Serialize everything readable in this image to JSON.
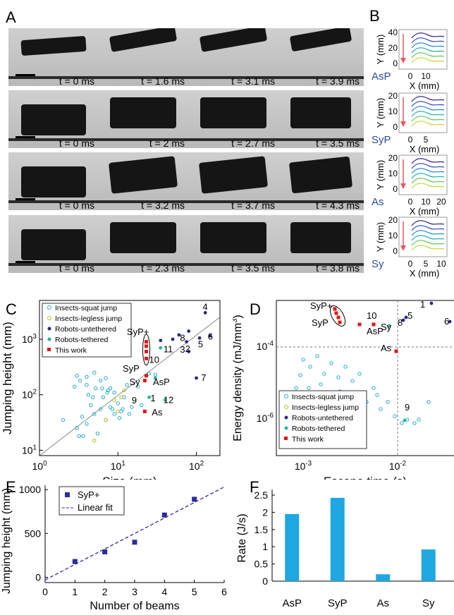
{
  "panels": {
    "A": "A",
    "B": "B",
    "C": "C",
    "D": "D",
    "E": "E",
    "F": "F"
  },
  "panel_a": {
    "rows": [
      {
        "times": [
          "t = 0 ms",
          "t = 1.6 ms",
          "t = 3.1 ms",
          "t = 3.9 ms"
        ]
      },
      {
        "times": [
          "t = 0 ms",
          "t = 2 ms",
          "t = 2.7 ms",
          "t = 3.5 ms"
        ]
      },
      {
        "times": [
          "t = 0 ms",
          "t = 3.2 ms",
          "t = 3.7 ms",
          "t = 4.3 ms"
        ]
      },
      {
        "times": [
          "t = 0 ms",
          "t = 2.3 ms",
          "t = 3.5 ms",
          "t = 3.8 ms"
        ]
      }
    ]
  },
  "panel_b": {
    "subplots": [
      {
        "name": "AsP",
        "ylabel": "Y (mm)",
        "xlabel": "X (mm)",
        "yticks": [
          "40",
          "20",
          "0"
        ],
        "xticks": [
          "0",
          "10"
        ]
      },
      {
        "name": "SyP",
        "ylabel": "Y (mm)",
        "xlabel": "X (mm)",
        "yticks": [
          "20",
          "10",
          "0"
        ],
        "xticks": [
          "0",
          "5"
        ]
      },
      {
        "name": "As",
        "ylabel": "Y (mm)",
        "xlabel": "X (mm)",
        "yticks": [
          "20",
          "10",
          "0"
        ],
        "xticks": [
          "0",
          "10",
          "20"
        ]
      },
      {
        "name": "Sy",
        "ylabel": "Y (mm)",
        "xlabel": "X (mm)",
        "yticks": [
          "20",
          "10",
          "0"
        ],
        "xticks": [
          "0",
          "5",
          "10"
        ]
      }
    ],
    "curve_colors": [
      "#3b2f8f",
      "#3f56c8",
      "#2f8fd6",
      "#25b6b0",
      "#6acb5c",
      "#c9d93d"
    ],
    "arrow_color": "#e8585e"
  },
  "chart_data": [
    {
      "id": "C",
      "type": "scatter",
      "xlabel": "Size (mm)",
      "ylabel": "Jumping height (mm)",
      "xscale": "log",
      "yscale": "log",
      "xlim": [
        1,
        200
      ],
      "ylim": [
        8,
        5000
      ],
      "xticks": [
        "10^0",
        "10^1",
        "10^2"
      ],
      "yticks": [
        "10^1",
        "10^2",
        "10^3"
      ],
      "legend": [
        "Insects-squat jump",
        "Insects-legless jump",
        "Robots-untethered",
        "Robots-tethered",
        "This work"
      ],
      "legend_position": "top-left",
      "colors": {
        "squat": "#22aacc",
        "legless": "#b5c21a",
        "untethered": "#2a2a8a",
        "tethered": "#1fb894",
        "work": "#e01818"
      },
      "series": [
        {
          "name": "Insects-squat jump",
          "points": [
            [
              3,
              25
            ],
            [
              3.5,
              40
            ],
            [
              4,
              30
            ],
            [
              4.5,
              65
            ],
            [
              5,
              45
            ],
            [
              5.5,
              20
            ],
            [
              6,
              55
            ],
            [
              6.5,
              90
            ],
            [
              7,
              35
            ],
            [
              7.5,
              120
            ],
            [
              8,
              60
            ],
            [
              9,
              45
            ],
            [
              10,
              70
            ],
            [
              11,
              50
            ],
            [
              12,
              90
            ],
            [
              13,
              150
            ],
            [
              14,
              45
            ],
            [
              15,
              60
            ],
            [
              4,
              150
            ],
            [
              5,
              250
            ],
            [
              6,
              180
            ],
            [
              7,
              200
            ],
            [
              8,
              130
            ],
            [
              3.2,
              18
            ],
            [
              3.6,
              18
            ],
            [
              4.8,
              90
            ],
            [
              9,
              110
            ],
            [
              10.5,
              38
            ],
            [
              2,
              35
            ],
            [
              2.8,
              140
            ],
            [
              3.3,
              180
            ],
            [
              4.2,
              100
            ],
            [
              5.2,
              130
            ],
            [
              6.3,
              130
            ],
            [
              7.3,
              110
            ],
            [
              8.5,
              55
            ],
            [
              11.5,
              55
            ],
            [
              20,
              65
            ],
            [
              18,
              140
            ],
            [
              25,
              240
            ],
            [
              30,
              230
            ],
            [
              3,
              220
            ],
            [
              4,
              210
            ]
          ]
        },
        {
          "name": "Insects-legless jump",
          "points": [
            [
              5,
              15
            ],
            [
              7,
              35
            ],
            [
              9,
              80
            ],
            [
              10,
              50
            ],
            [
              11,
              90
            ],
            [
              12,
              120
            ]
          ]
        },
        {
          "name": "Robots-untethered",
          "points": [
            [
              130,
              3000
            ],
            [
              80,
              1400
            ],
            [
              75,
              900
            ],
            [
              110,
              1050
            ],
            [
              150,
              1150
            ],
            [
              80,
              600
            ],
            [
              100,
              200
            ],
            [
              35,
              950
            ],
            [
              50,
              1000
            ],
            [
              60,
              1200
            ]
          ]
        },
        {
          "name": "Robots-tethered",
          "points": [
            [
              35,
              700
            ],
            [
              30,
              200
            ],
            [
              25,
              90
            ],
            [
              40,
              80
            ]
          ]
        },
        {
          "name": "This work",
          "points": [
            [
              23,
              900
            ],
            [
              23,
              750
            ],
            [
              23,
              600
            ],
            [
              23,
              450
            ],
            [
              22,
              180
            ],
            [
              23,
              220
            ],
            [
              22,
              50
            ]
          ]
        }
      ],
      "annotations": [
        "4",
        "8",
        "3",
        "5",
        "6",
        "2",
        "7",
        "11",
        "SyP+",
        "10",
        "SyP",
        "Sy",
        "AsP",
        "12",
        "9",
        "1",
        "As"
      ]
    },
    {
      "id": "D",
      "type": "scatter",
      "xlabel": "Escape time (s)",
      "ylabel": "Energy density (mJ/mm^3)",
      "xscale": "log",
      "yscale": "log",
      "xticks": [
        "10^-3",
        "10^-2"
      ],
      "yticks": [
        "10^-4",
        "10^-6"
      ],
      "legend": [
        "Insects-squat jump",
        "Insects-legless jump",
        "Robots-untethered",
        "Robots-tethered",
        "This work"
      ],
      "legend_position": "bottom-left",
      "annotations": [
        "1",
        "5",
        "8",
        "6",
        "SyP+",
        "SyP",
        "10",
        "AsP",
        "Sy",
        "As",
        "9"
      ]
    },
    {
      "id": "E",
      "type": "scatter",
      "xlabel": "Number of beams",
      "ylabel": "Jumping height (mm)",
      "xlim": [
        0,
        6
      ],
      "ylim": [
        -60,
        1050
      ],
      "xticks": [
        "0",
        "1",
        "2",
        "3",
        "4",
        "5",
        "6"
      ],
      "yticks": [
        "0",
        "500",
        "1000"
      ],
      "legend": [
        "SyP+",
        "Linear fit"
      ],
      "legend_position": "top-left",
      "x": [
        1,
        2,
        3,
        4,
        5
      ],
      "y": [
        180,
        290,
        400,
        710,
        890
      ],
      "fit": [
        [
          0,
          -30
        ],
        [
          6,
          1030
        ]
      ],
      "color": "#2b2ba0"
    },
    {
      "id": "F",
      "type": "bar",
      "xlabel": "",
      "ylabel": "Rate (J/s)",
      "categories": [
        "AsP",
        "SyP",
        "As",
        "Sy"
      ],
      "values": [
        1.95,
        2.42,
        0.2,
        0.92
      ],
      "ylim": [
        0,
        2.5
      ],
      "yticks": [
        "0",
        "0.5",
        "1",
        "1.5",
        "2",
        "2.5"
      ],
      "color": "#1ea7e1"
    }
  ]
}
